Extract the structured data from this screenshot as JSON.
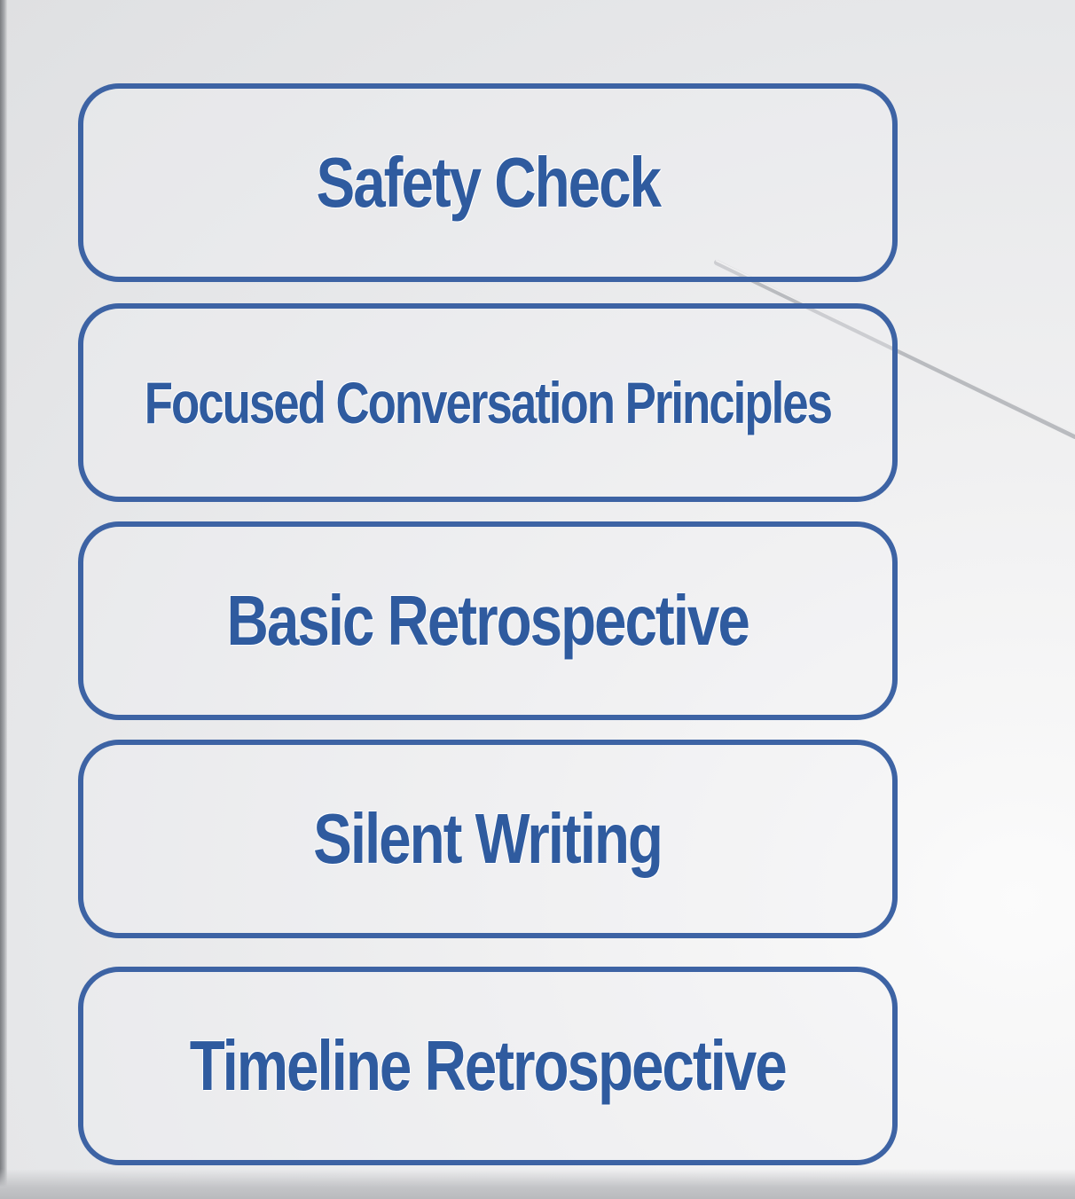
{
  "steps": [
    {
      "label": "Safety Check"
    },
    {
      "label": "Focused Conversation Principles"
    },
    {
      "label": "Basic Retrospective"
    },
    {
      "label": "Silent Writing"
    },
    {
      "label": "Timeline Retrospective"
    }
  ],
  "colors": {
    "box_border": "#3d63a4",
    "label_text": "#2f5b9f",
    "background": "#e6e7e9"
  }
}
